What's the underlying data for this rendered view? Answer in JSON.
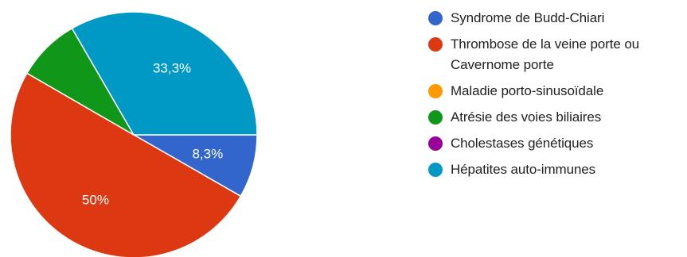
{
  "chart_data": {
    "type": "pie",
    "title": "",
    "slices": [
      {
        "label": "Syndrome de Budd-Chiari",
        "value": 8.3,
        "value_label": "8,3%",
        "color": "#3366cc"
      },
      {
        "label": "Thrombose de la veine porte ou Cavernome porte",
        "value": 50,
        "value_label": "50%",
        "color": "#dc3912"
      },
      {
        "label": "Maladie porto-sinusoïdale",
        "value": 0,
        "value_label": "",
        "color": "#ff9900"
      },
      {
        "label": "Atrésie des voies biliaires",
        "value": 8.3,
        "value_label": "",
        "color": "#109618"
      },
      {
        "label": "Cholestases génétiques",
        "value": 0,
        "value_label": "",
        "color": "#990099"
      },
      {
        "label": "Hépatites auto-immunes",
        "value": 33.3,
        "value_label": "33,3%",
        "color": "#0099c6"
      }
    ],
    "legend_position": "right"
  }
}
